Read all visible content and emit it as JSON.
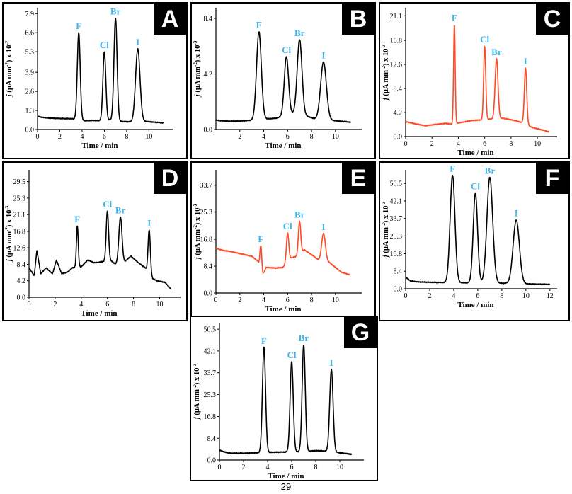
{
  "page_number": "29",
  "chart_data": [
    {
      "panel": "A",
      "type": "line",
      "color": "#000000",
      "ylabel_prefix": "j",
      "ylabel_units": " (µA mm",
      "ylabel_suffix": ") x 10",
      "ylabel_exp": "-2",
      "ylabel_exp2": "-2",
      "xlabel": "Time / min",
      "xlim": [
        0,
        12.2
      ],
      "ylim": [
        0,
        8.3
      ],
      "xticks": [
        0,
        2,
        4,
        6,
        8,
        10
      ],
      "yticks": [
        0.0,
        1.3,
        2.6,
        3.9,
        5.3,
        6.6,
        7.9
      ],
      "ytick_labels": [
        "0.0",
        "1.3",
        "2.6",
        "3.9",
        "5.3",
        "6.6",
        "7.9"
      ],
      "baseline": [
        [
          0,
          0.9
        ],
        [
          0.5,
          0.82
        ],
        [
          1,
          0.78
        ],
        [
          2,
          0.75
        ],
        [
          3,
          0.74
        ],
        [
          3.3,
          0.72
        ],
        [
          4.2,
          0.6
        ],
        [
          5,
          0.62
        ],
        [
          5.7,
          0.6
        ],
        [
          6.5,
          0.66
        ],
        [
          7.3,
          0.55
        ],
        [
          8.5,
          0.52
        ],
        [
          9.5,
          0.56
        ],
        [
          10.5,
          0.5
        ],
        [
          11.3,
          0.45
        ]
      ],
      "peaks": [
        {
          "label": "F",
          "x": 3.7,
          "y": 6.6,
          "w": 0.13
        },
        {
          "label": "Cl",
          "x": 6.0,
          "y": 5.3,
          "w": 0.13
        },
        {
          "label": "Br",
          "x": 7.0,
          "y": 7.6,
          "w": 0.14
        },
        {
          "label": "I",
          "x": 9.0,
          "y": 5.5,
          "w": 0.2
        }
      ]
    },
    {
      "panel": "B",
      "type": "line",
      "color": "#000000",
      "ylabel_prefix": "j",
      "ylabel_units": " (µA mm",
      "ylabel_suffix": ") x 10",
      "ylabel_exp": "-2",
      "ylabel_exp2": "-3",
      "xlabel": "Time / min",
      "xlim": [
        0,
        12.2
      ],
      "ylim": [
        0,
        9.2
      ],
      "xticks": [
        2,
        4,
        6,
        8,
        10
      ],
      "yticks": [
        0.0,
        4.2,
        8.4
      ],
      "ytick_labels": [
        "0.0",
        "4.2",
        "8.4"
      ],
      "baseline": [
        [
          0,
          0.7
        ],
        [
          1,
          0.62
        ],
        [
          2,
          0.64
        ],
        [
          3,
          0.7
        ],
        [
          4.2,
          0.8
        ],
        [
          5,
          0.85
        ],
        [
          6.5,
          1.2
        ],
        [
          7.6,
          1.0
        ],
        [
          8.3,
          0.8
        ],
        [
          9.6,
          0.7
        ],
        [
          10.5,
          0.62
        ],
        [
          11.3,
          0.55
        ]
      ],
      "peaks": [
        {
          "label": "F",
          "x": 3.6,
          "y": 7.4,
          "w": 0.2
        },
        {
          "label": "Cl",
          "x": 5.9,
          "y": 5.5,
          "w": 0.18
        },
        {
          "label": "Br",
          "x": 7.0,
          "y": 6.8,
          "w": 0.2
        },
        {
          "label": "I",
          "x": 9.0,
          "y": 5.1,
          "w": 0.24
        }
      ]
    },
    {
      "panel": "C",
      "type": "line",
      "color": "#ff4a26",
      "ylabel_prefix": "j",
      "ylabel_units": " (µA mm",
      "ylabel_suffix": ") x 10",
      "ylabel_exp": "-2",
      "ylabel_exp2": "-3",
      "xlabel": "Time / min",
      "xlim": [
        0,
        11.5
      ],
      "ylim": [
        0,
        22.5
      ],
      "xticks": [
        0,
        2,
        4,
        6,
        8,
        10
      ],
      "yticks": [
        0.0,
        4.2,
        8.4,
        12.6,
        16.8,
        21.1
      ],
      "ytick_labels": [
        "0.0",
        "4.2",
        "8.4",
        "12.6",
        "16.8",
        "21.1"
      ],
      "baseline": [
        [
          0,
          2.6
        ],
        [
          0.8,
          2.2
        ],
        [
          1.5,
          1.9
        ],
        [
          2.2,
          2.1
        ],
        [
          3,
          2.3
        ],
        [
          3.5,
          2.2
        ],
        [
          4.3,
          2.5
        ],
        [
          5,
          2.8
        ],
        [
          5.7,
          2.9
        ],
        [
          6.6,
          3.1
        ],
        [
          7.4,
          3.2
        ],
        [
          8.3,
          2.8
        ],
        [
          8.9,
          2.4
        ],
        [
          9.6,
          1.6
        ],
        [
          10.3,
          1.2
        ],
        [
          10.9,
          0.8
        ]
      ],
      "peaks": [
        {
          "label": "F",
          "x": 3.7,
          "y": 19.6,
          "w": 0.06
        },
        {
          "label": "Cl",
          "x": 6.0,
          "y": 15.8,
          "w": 0.08
        },
        {
          "label": "Br",
          "x": 6.9,
          "y": 13.6,
          "w": 0.11
        },
        {
          "label": "I",
          "x": 9.1,
          "y": 12.0,
          "w": 0.09
        }
      ]
    },
    {
      "panel": "D",
      "type": "line",
      "color": "#000000",
      "ylabel_prefix": "j",
      "ylabel_units": " (µA mm",
      "ylabel_suffix": ") x 10",
      "ylabel_exp": "-2",
      "ylabel_exp2": "-3",
      "xlabel": "Time / min",
      "xlim": [
        0,
        11.6
      ],
      "ylim": [
        0,
        32.5
      ],
      "xticks": [
        0,
        2,
        4,
        6,
        8,
        10
      ],
      "yticks": [
        0.0,
        4.2,
        8.4,
        12.6,
        16.8,
        21.1,
        25.3,
        29.5
      ],
      "ytick_labels": [
        "0.0",
        "4.2",
        "8.4",
        "12.6",
        "16.8",
        "21.1",
        "25.3",
        "29.5"
      ],
      "baseline": [
        [
          0,
          7.5
        ],
        [
          0.4,
          5.5
        ],
        [
          0.6,
          12.0
        ],
        [
          0.9,
          6.0
        ],
        [
          1.3,
          7.5
        ],
        [
          1.8,
          6.0
        ],
        [
          2.1,
          9.5
        ],
        [
          2.5,
          6.0
        ],
        [
          3.0,
          6.5
        ],
        [
          3.3,
          7.5
        ],
        [
          4.0,
          7.8
        ],
        [
          4.5,
          9.5
        ],
        [
          5.0,
          8.8
        ],
        [
          5.5,
          9.0
        ],
        [
          6.2,
          9.5
        ],
        [
          6.6,
          8.5
        ],
        [
          7.3,
          9.0
        ],
        [
          7.8,
          10.5
        ],
        [
          8.3,
          9.0
        ],
        [
          8.9,
          7.5
        ],
        [
          9.3,
          5.0
        ],
        [
          9.8,
          4.2
        ],
        [
          10.4,
          3.8
        ],
        [
          10.9,
          2.0
        ]
      ],
      "peaks": [
        {
          "label": "F",
          "x": 3.7,
          "y": 18.2,
          "w": 0.07
        },
        {
          "label": "Cl",
          "x": 6.0,
          "y": 22.0,
          "w": 0.09
        },
        {
          "label": "Br",
          "x": 7.0,
          "y": 20.5,
          "w": 0.12
        },
        {
          "label": "I",
          "x": 9.2,
          "y": 17.2,
          "w": 0.09
        }
      ]
    },
    {
      "panel": "E",
      "type": "line",
      "color": "#ff4a26",
      "ylabel_prefix": "j",
      "ylabel_units": " (µA mm",
      "ylabel_suffix": ") x 10",
      "ylabel_exp": "-2",
      "ylabel_exp2": "-3",
      "xlabel": "Time / min",
      "xlim": [
        0,
        12.2
      ],
      "ylim": [
        0,
        38.5
      ],
      "xticks": [
        0,
        2,
        4,
        6,
        8,
        10
      ],
      "yticks": [
        0.0,
        8.4,
        16.8,
        25.3,
        33.7
      ],
      "ytick_labels": [
        "0.0",
        "8.4",
        "16.8",
        "25.3",
        "33.7"
      ],
      "baseline": [
        [
          0,
          14.0
        ],
        [
          0.6,
          13.3
        ],
        [
          1.2,
          13.0
        ],
        [
          1.8,
          12.5
        ],
        [
          2.4,
          12.0
        ],
        [
          3.0,
          11.5
        ],
        [
          3.5,
          10.0
        ],
        [
          3.9,
          5.5
        ],
        [
          4.2,
          8.0
        ],
        [
          5.0,
          7.8
        ],
        [
          5.6,
          8.0
        ],
        [
          6.3,
          11.0
        ],
        [
          6.8,
          11.5
        ],
        [
          7.4,
          13.5
        ],
        [
          8.0,
          12.0
        ],
        [
          8.7,
          10.0
        ],
        [
          9.5,
          9.5
        ],
        [
          10.0,
          8.0
        ],
        [
          10.5,
          6.5
        ],
        [
          11.2,
          5.7
        ]
      ],
      "peaks": [
        {
          "label": "F",
          "x": 3.75,
          "y": 14.8,
          "w": 0.08
        },
        {
          "label": "Cl",
          "x": 6.0,
          "y": 18.8,
          "w": 0.1
        },
        {
          "label": "Br",
          "x": 7.0,
          "y": 22.5,
          "w": 0.1
        },
        {
          "label": "I",
          "x": 9.0,
          "y": 18.6,
          "w": 0.16
        }
      ]
    },
    {
      "panel": "F",
      "type": "line",
      "color": "#000000",
      "ylabel_prefix": "j",
      "ylabel_units": " (µA mm",
      "ylabel_suffix": ") x 10",
      "ylabel_exp": "-2",
      "ylabel_exp2": "-3",
      "xlabel": "Time / min",
      "xlim": [
        0,
        12.6
      ],
      "ylim": [
        0,
        57.0
      ],
      "xticks": [
        0,
        2,
        4,
        6,
        8,
        10,
        12
      ],
      "yticks": [
        0.0,
        8.4,
        16.8,
        25.3,
        33.7,
        42.1,
        50.5
      ],
      "ytick_labels": [
        "0.0",
        "8.4",
        "16.8",
        "25.3",
        "33.7",
        "42.1",
        "50.5"
      ],
      "baseline": [
        [
          0,
          5.5
        ],
        [
          0.4,
          3.8
        ],
        [
          1,
          3.3
        ],
        [
          2,
          3.1
        ],
        [
          3,
          3.0
        ],
        [
          4.5,
          2.9
        ],
        [
          6.5,
          2.8
        ],
        [
          8.5,
          2.6
        ],
        [
          10,
          2.3
        ],
        [
          11,
          2.2
        ],
        [
          12,
          2.1
        ]
      ],
      "peaks": [
        {
          "label": "F",
          "x": 3.9,
          "y": 54.5,
          "w": 0.2
        },
        {
          "label": "Cl",
          "x": 5.8,
          "y": 46.0,
          "w": 0.18
        },
        {
          "label": "Br",
          "x": 7.0,
          "y": 53.5,
          "w": 0.24
        },
        {
          "label": "I",
          "x": 9.2,
          "y": 33.0,
          "w": 0.26
        }
      ]
    },
    {
      "panel": "G",
      "type": "line",
      "color": "#000000",
      "ylabel_prefix": "j",
      "ylabel_units": " (µA mm",
      "ylabel_suffix": ") x 10",
      "ylabel_exp": "-2",
      "ylabel_exp2": "-3",
      "xlabel": "Time / min",
      "xlim": [
        0,
        12.0
      ],
      "ylim": [
        0,
        53.0
      ],
      "xticks": [
        0,
        2,
        4,
        6,
        8,
        10
      ],
      "yticks": [
        0.0,
        8.4,
        16.8,
        25.3,
        33.7,
        42.1,
        50.5
      ],
      "ytick_labels": [
        "0.0",
        "8.4",
        "16.8",
        "25.3",
        "33.7",
        "42.1",
        "50.5"
      ],
      "baseline": [
        [
          0,
          3.8
        ],
        [
          0.5,
          3.0
        ],
        [
          1,
          2.6
        ],
        [
          2,
          2.6
        ],
        [
          3,
          2.8
        ],
        [
          4.5,
          3.0
        ],
        [
          5.5,
          3.1
        ],
        [
          6.5,
          3.2
        ],
        [
          8,
          3.6
        ],
        [
          9,
          3.4
        ],
        [
          10,
          2.8
        ],
        [
          11,
          2.2
        ]
      ],
      "peaks": [
        {
          "label": "F",
          "x": 3.7,
          "y": 43.5,
          "w": 0.13
        },
        {
          "label": "Cl",
          "x": 6.0,
          "y": 38.0,
          "w": 0.13
        },
        {
          "label": "Br",
          "x": 7.0,
          "y": 44.5,
          "w": 0.13
        },
        {
          "label": "I",
          "x": 9.3,
          "y": 35.0,
          "w": 0.14
        }
      ]
    }
  ]
}
